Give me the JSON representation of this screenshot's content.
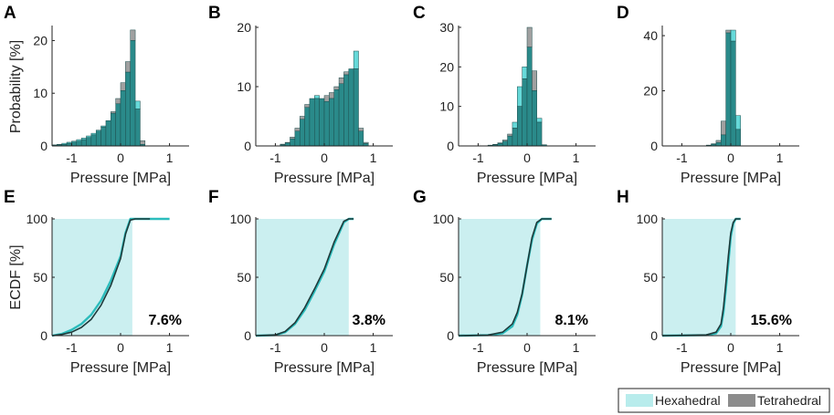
{
  "legend": {
    "items": [
      {
        "name": "Hexahedral",
        "color": "#33cccc"
      },
      {
        "name": "Tetrahedral",
        "color": "#808080"
      }
    ]
  },
  "colors": {
    "hex": "#33cccc",
    "tet": "#808080",
    "overlap": "#2a8a8a",
    "ecdf_fill": "#cbeff0",
    "hex_line": "#2bbcbc",
    "tet_line": "#1e3a3a"
  },
  "chart_data": [
    {
      "panel": "A",
      "type": "bar",
      "xlabel": "Pressure [MPa]",
      "ylabel": "Probability [%]",
      "xlim": [
        -1.4,
        1.4
      ],
      "ylim": [
        0,
        22.5
      ],
      "xticks": [
        -1,
        0,
        1
      ],
      "yticks": [
        0,
        10,
        20
      ],
      "bin_edges_start": -1.4,
      "bin_width": 0.1,
      "series": [
        {
          "name": "Hexahedral",
          "values": [
            0.2,
            0.3,
            0.5,
            0.7,
            0.9,
            1.2,
            1.5,
            1.9,
            2.4,
            3.0,
            3.8,
            4.8,
            6.2,
            8.0,
            10.5,
            14.0,
            20.0,
            8.5,
            0.3,
            0,
            0,
            0,
            0,
            0,
            0,
            0,
            0,
            0
          ]
        },
        {
          "name": "Tetrahedral",
          "values": [
            0.1,
            0.2,
            0.3,
            0.5,
            0.7,
            0.9,
            1.2,
            1.6,
            2.1,
            2.8,
            3.6,
            4.8,
            6.5,
            9.0,
            12.0,
            16.0,
            22.0,
            7.0,
            1.0,
            0,
            0,
            0,
            0,
            0,
            0,
            0,
            0,
            0
          ]
        }
      ]
    },
    {
      "panel": "B",
      "type": "bar",
      "xlabel": "Pressure [MPa]",
      "ylabel": "",
      "xlim": [
        -1.4,
        1.4
      ],
      "ylim": [
        0,
        20
      ],
      "xticks": [
        -1,
        0,
        1
      ],
      "yticks": [
        0,
        10,
        20
      ],
      "bin_edges_start": -1.4,
      "bin_width": 0.1,
      "series": [
        {
          "name": "Hexahedral",
          "values": [
            0,
            0,
            0,
            0,
            0,
            0.2,
            0.5,
            1.2,
            2.5,
            4.5,
            6.5,
            8.0,
            8.5,
            8.0,
            7.5,
            8.0,
            9.5,
            10.5,
            12.0,
            13.0,
            16.0,
            2.5,
            0.4,
            0,
            0,
            0,
            0,
            0
          ]
        },
        {
          "name": "Tetrahedral",
          "values": [
            0,
            0,
            0,
            0,
            0,
            0.3,
            0.6,
            1.5,
            3.0,
            5.0,
            7.0,
            8.0,
            8.0,
            8.0,
            8.5,
            9.0,
            10.0,
            11.5,
            12.5,
            13.0,
            13.0,
            3.0,
            0.6,
            0,
            0,
            0,
            0,
            0
          ]
        }
      ]
    },
    {
      "panel": "C",
      "type": "bar",
      "xlabel": "Pressure [MPa]",
      "ylabel": "",
      "xlim": [
        -1.4,
        1.4
      ],
      "ylim": [
        0,
        30
      ],
      "xticks": [
        -1,
        0,
        1
      ],
      "yticks": [
        0,
        10,
        20,
        30
      ],
      "bin_edges_start": -1.4,
      "bin_width": 0.1,
      "series": [
        {
          "name": "Hexahedral",
          "values": [
            0,
            0,
            0,
            0,
            0,
            0,
            0.1,
            0.3,
            0.6,
            1.2,
            2.5,
            6.0,
            15.0,
            20.0,
            25.0,
            14.0,
            7.0,
            0.3,
            0,
            0,
            0,
            0,
            0,
            0,
            0,
            0,
            0,
            0
          ]
        },
        {
          "name": "Tetrahedral",
          "values": [
            0,
            0,
            0,
            0,
            0,
            0,
            0.2,
            0.4,
            0.8,
            1.5,
            3.0,
            4.5,
            10.0,
            17.0,
            30.0,
            19.0,
            6.0,
            0.3,
            0,
            0,
            0,
            0,
            0,
            0,
            0,
            0,
            0,
            0
          ]
        }
      ]
    },
    {
      "panel": "D",
      "type": "bar",
      "xlabel": "Pressure [MPa]",
      "ylabel": "",
      "xlim": [
        -1.4,
        1.4
      ],
      "ylim": [
        0,
        43
      ],
      "xticks": [
        -1,
        0,
        1
      ],
      "yticks": [
        0,
        20,
        40
      ],
      "bin_edges_start": -1.4,
      "bin_width": 0.1,
      "series": [
        {
          "name": "Hexahedral",
          "values": [
            0,
            0,
            0,
            0,
            0,
            0,
            0,
            0,
            0,
            0.2,
            0.6,
            1.2,
            4.0,
            41.0,
            42.0,
            11.0,
            0,
            0,
            0,
            0,
            0,
            0,
            0,
            0,
            0,
            0,
            0,
            0
          ]
        },
        {
          "name": "Tetrahedral",
          "values": [
            0,
            0,
            0,
            0,
            0,
            0,
            0,
            0,
            0,
            0.3,
            0.8,
            2.0,
            9.0,
            42.0,
            38.0,
            6.0,
            0,
            0,
            0,
            0,
            0,
            0,
            0,
            0,
            0,
            0,
            0,
            0
          ]
        }
      ]
    },
    {
      "panel": "E",
      "type": "line",
      "xlabel": "Pressure [MPa]",
      "ylabel": "ECDF [%]",
      "xlim": [
        -1.4,
        1.4
      ],
      "ylim": [
        0,
        100
      ],
      "xticks": [
        -1,
        0,
        1
      ],
      "yticks": [
        0,
        50,
        100
      ],
      "shade_max": 0.24,
      "annotation": "7.6%",
      "series": [
        {
          "name": "Hexahedral",
          "x": [
            -1.4,
            -1.2,
            -1.0,
            -0.8,
            -0.6,
            -0.4,
            -0.2,
            0.0,
            0.1,
            0.2,
            0.3,
            1.0
          ],
          "y": [
            0,
            1.5,
            5,
            10,
            18,
            30,
            47,
            68,
            88,
            100,
            100,
            100
          ]
        },
        {
          "name": "Tetrahedral",
          "x": [
            -1.4,
            -1.2,
            -1.0,
            -0.8,
            -0.6,
            -0.4,
            -0.2,
            0.0,
            0.1,
            0.2,
            0.3,
            0.6
          ],
          "y": [
            0,
            1,
            3,
            7,
            14,
            26,
            43,
            66,
            87,
            99,
            100,
            100
          ]
        }
      ]
    },
    {
      "panel": "F",
      "type": "line",
      "xlabel": "Pressure [MPa]",
      "ylabel": "",
      "xlim": [
        -1.4,
        1.4
      ],
      "ylim": [
        0,
        100
      ],
      "xticks": [
        -1,
        0,
        1
      ],
      "yticks": [
        0,
        50,
        100
      ],
      "shade_max": 0.5,
      "annotation": "3.8%",
      "series": [
        {
          "name": "Hexahedral",
          "x": [
            -1.4,
            -1.0,
            -0.8,
            -0.6,
            -0.4,
            -0.2,
            0.0,
            0.2,
            0.4,
            0.5,
            0.6
          ],
          "y": [
            0,
            0.5,
            3,
            10,
            22,
            38,
            55,
            78,
            97,
            100,
            100
          ]
        },
        {
          "name": "Tetrahedral",
          "x": [
            -1.4,
            -1.0,
            -0.8,
            -0.6,
            -0.4,
            -0.2,
            0.0,
            0.2,
            0.4,
            0.5,
            0.6
          ],
          "y": [
            0,
            0.6,
            3.5,
            11,
            24,
            40,
            57,
            80,
            98,
            100,
            100
          ]
        }
      ]
    },
    {
      "panel": "G",
      "type": "line",
      "xlabel": "Pressure [MPa]",
      "ylabel": "",
      "xlim": [
        -1.4,
        1.4
      ],
      "ylim": [
        0,
        100
      ],
      "xticks": [
        -1,
        0,
        1
      ],
      "yticks": [
        0,
        50,
        100
      ],
      "shade_max": 0.27,
      "annotation": "8.1%",
      "series": [
        {
          "name": "Hexahedral",
          "x": [
            -1.4,
            -0.8,
            -0.5,
            -0.3,
            -0.2,
            -0.1,
            0.0,
            0.1,
            0.2,
            0.3,
            0.5
          ],
          "y": [
            0,
            0.5,
            2,
            8,
            18,
            35,
            60,
            82,
            96,
            100,
            100
          ]
        },
        {
          "name": "Tetrahedral",
          "x": [
            -1.4,
            -0.8,
            -0.5,
            -0.3,
            -0.2,
            -0.1,
            0.0,
            0.1,
            0.2,
            0.3,
            0.5
          ],
          "y": [
            0,
            0.5,
            3,
            10,
            20,
            36,
            60,
            84,
            97,
            100,
            100
          ]
        }
      ]
    },
    {
      "panel": "H",
      "type": "line",
      "xlabel": "Pressure [MPa]",
      "ylabel": "",
      "xlim": [
        -1.4,
        1.4
      ],
      "ylim": [
        0,
        100
      ],
      "xticks": [
        -1,
        0,
        1
      ],
      "yticks": [
        0,
        50,
        100
      ],
      "shade_max": 0.1,
      "annotation": "15.6%",
      "series": [
        {
          "name": "Hexahedral",
          "x": [
            -1.4,
            -0.5,
            -0.3,
            -0.2,
            -0.15,
            -0.1,
            -0.05,
            0.0,
            0.05,
            0.1,
            0.2
          ],
          "y": [
            0,
            0.5,
            2,
            8,
            20,
            40,
            62,
            85,
            96,
            100,
            100
          ]
        },
        {
          "name": "Tetrahedral",
          "x": [
            -1.4,
            -0.5,
            -0.3,
            -0.2,
            -0.15,
            -0.1,
            -0.05,
            0.0,
            0.05,
            0.1,
            0.2
          ],
          "y": [
            0,
            0.6,
            3,
            10,
            24,
            45,
            68,
            88,
            97,
            100,
            100
          ]
        }
      ]
    }
  ]
}
